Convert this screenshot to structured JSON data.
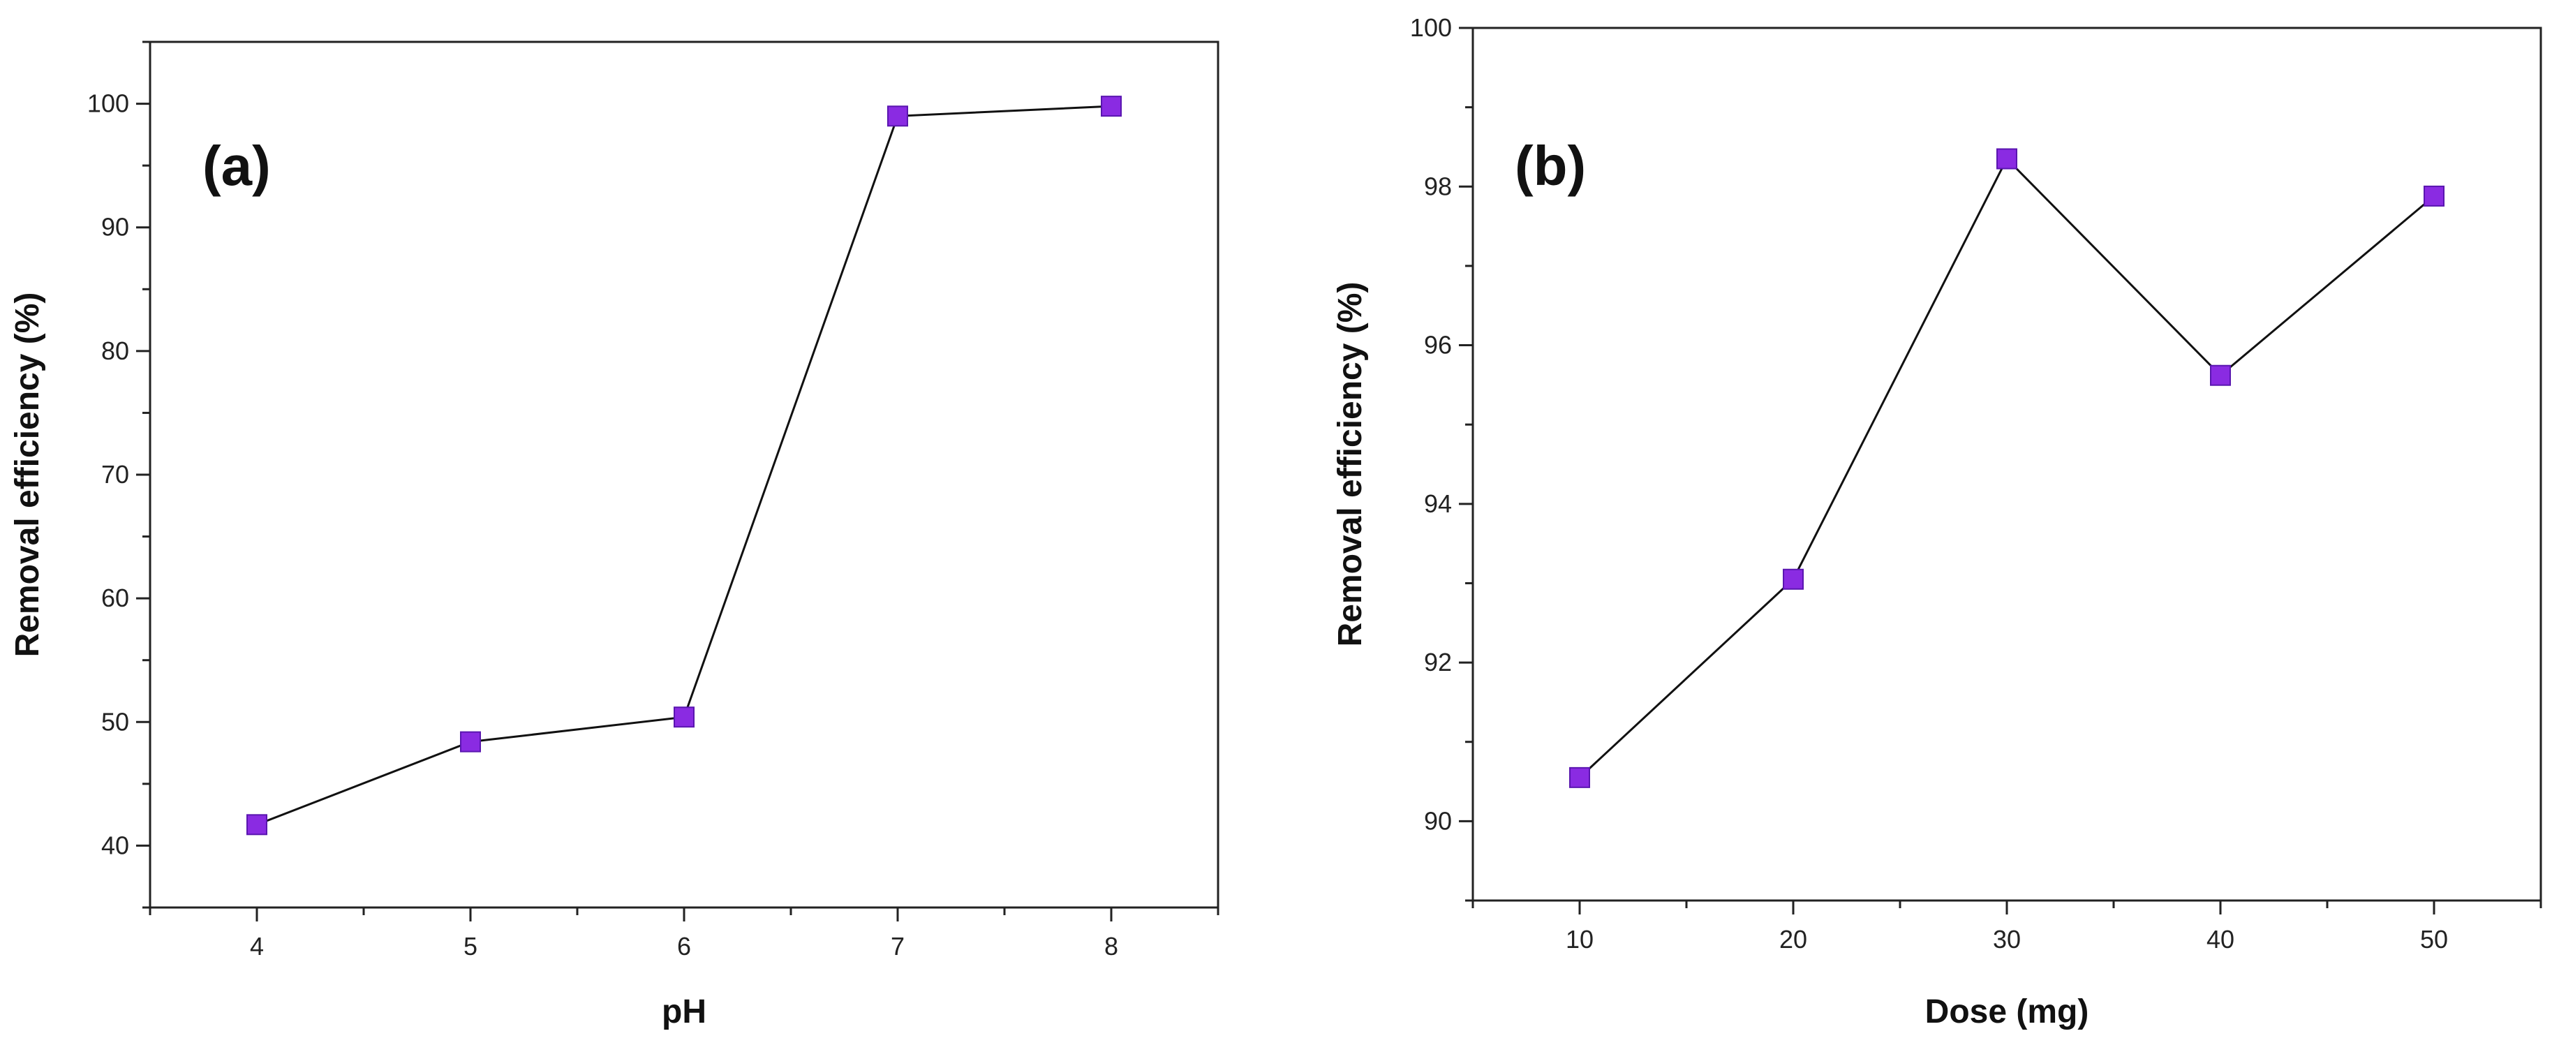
{
  "colors": {
    "marker": "#8a2be2",
    "line": "#111111",
    "axis": "#222222"
  },
  "chart_data": [
    {
      "type": "line",
      "panel_label": "(a)",
      "xlabel": "pH",
      "ylabel": "Removal efficiency (%)",
      "xlim": [
        3.5,
        8.5
      ],
      "ylim": [
        35,
        105
      ],
      "xticks": [
        4,
        5,
        6,
        7,
        8
      ],
      "yticks": [
        40,
        50,
        60,
        70,
        80,
        90,
        100
      ],
      "ytick_labels": [
        "40",
        "50",
        "60",
        "70",
        "80",
        "90",
        "100"
      ],
      "xtick_labels": [
        "4",
        "5",
        "6",
        "7",
        "8"
      ],
      "grid": false,
      "marker": "square",
      "series": [
        {
          "x": [
            4,
            5,
            6,
            7,
            8
          ],
          "values": [
            41.7,
            48.4,
            50.4,
            99.0,
            99.8
          ]
        }
      ]
    },
    {
      "type": "line",
      "panel_label": "(b)",
      "xlabel": "Dose (mg)",
      "ylabel": "Removal efficiency (%)",
      "xlim": [
        5,
        55
      ],
      "ylim": [
        89,
        100
      ],
      "xticks": [
        10,
        20,
        30,
        40,
        50
      ],
      "yticks": [
        90,
        92,
        94,
        96,
        98,
        100
      ],
      "ytick_labels": [
        "90",
        "92",
        "94",
        "96",
        "98",
        "100"
      ],
      "xtick_labels": [
        "10",
        "20",
        "30",
        "40",
        "50"
      ],
      "grid": false,
      "marker": "square",
      "series": [
        {
          "x": [
            10,
            20,
            30,
            40,
            50
          ],
          "values": [
            90.55,
            93.05,
            98.35,
            95.62,
            97.88
          ]
        }
      ]
    }
  ]
}
